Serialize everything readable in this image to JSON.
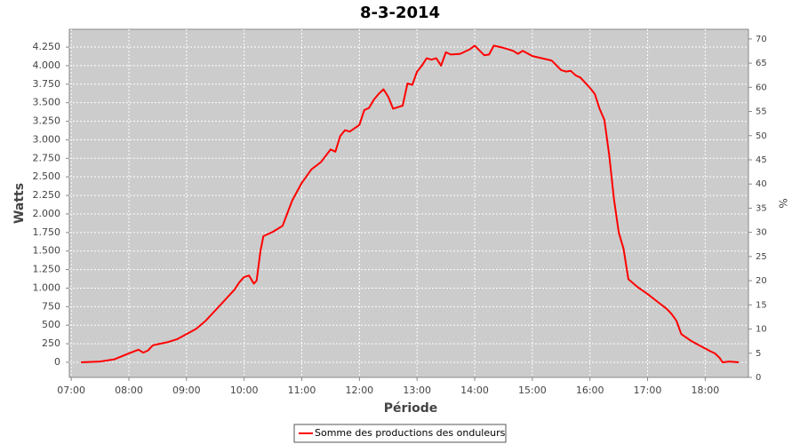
{
  "chart_data": {
    "type": "line",
    "title": "8-3-2014",
    "x_label": "Période",
    "y_label": "Watts",
    "y2_label": "%",
    "x": [
      "07:10",
      "07:30",
      "07:45",
      "08:00",
      "08:10",
      "08:15",
      "08:20",
      "08:25",
      "08:40",
      "08:50",
      "09:00",
      "09:10",
      "09:20",
      "09:30",
      "09:40",
      "09:50",
      "09:55",
      "10:00",
      "10:05",
      "10:10",
      "10:13",
      "10:17",
      "10:20",
      "10:30",
      "10:40",
      "10:50",
      "11:00",
      "11:10",
      "11:20",
      "11:30",
      "11:35",
      "11:40",
      "11:45",
      "11:50",
      "12:00",
      "12:05",
      "12:10",
      "12:15",
      "12:20",
      "12:25",
      "12:30",
      "12:35",
      "12:40",
      "12:45",
      "12:50",
      "12:55",
      "13:00",
      "13:05",
      "13:10",
      "13:15",
      "13:20",
      "13:25",
      "13:30",
      "13:35",
      "13:45",
      "13:55",
      "14:00",
      "14:10",
      "14:15",
      "14:20",
      "14:30",
      "14:40",
      "14:45",
      "14:50",
      "15:00",
      "15:10",
      "15:20",
      "15:30",
      "15:35",
      "15:40",
      "15:45",
      "15:50",
      "15:55",
      "16:00",
      "16:05",
      "16:10",
      "16:15",
      "16:20",
      "16:25",
      "16:30",
      "16:35",
      "16:40",
      "16:50",
      "17:00",
      "17:10",
      "17:20",
      "17:25",
      "17:30",
      "17:35",
      "17:45",
      "17:55",
      "18:05",
      "18:10",
      "18:15",
      "18:18",
      "18:25",
      "18:35"
    ],
    "series": [
      {
        "name": "Somme des productions des onduleurs",
        "color": "#ff0000",
        "values": [
          0,
          10,
          40,
          120,
          170,
          130,
          160,
          230,
          270,
          310,
          380,
          450,
          560,
          700,
          840,
          980,
          1080,
          1150,
          1170,
          1060,
          1100,
          1500,
          1700,
          1760,
          1840,
          2180,
          2420,
          2600,
          2700,
          2870,
          2840,
          3050,
          3130,
          3110,
          3200,
          3400,
          3430,
          3540,
          3620,
          3680,
          3580,
          3420,
          3440,
          3460,
          3760,
          3740,
          3920,
          4000,
          4100,
          4080,
          4100,
          4000,
          4180,
          4150,
          4160,
          4220,
          4270,
          4140,
          4150,
          4270,
          4240,
          4200,
          4160,
          4200,
          4130,
          4100,
          4070,
          3940,
          3920,
          3930,
          3870,
          3840,
          3770,
          3700,
          3620,
          3420,
          3270,
          2800,
          2200,
          1750,
          1530,
          1120,
          1010,
          920,
          820,
          720,
          650,
          560,
          380,
          290,
          220,
          150,
          120,
          60,
          0,
          10,
          0
        ]
      }
    ],
    "xlim": [
      "06:58",
      "18:45"
    ],
    "xticks": [
      "07:00",
      "08:00",
      "09:00",
      "10:00",
      "11:00",
      "12:00",
      "13:00",
      "14:00",
      "15:00",
      "16:00",
      "17:00",
      "18:00"
    ],
    "ylim": [
      -204,
      4490
    ],
    "yticks": [
      0,
      250,
      500,
      750,
      {
        "value": 1000,
        "label": "1.000"
      },
      {
        "value": 1250,
        "label": "1.250"
      },
      {
        "value": 1500,
        "label": "1.500"
      },
      {
        "value": 1750,
        "label": "1.750"
      },
      {
        "value": 2000,
        "label": "2.000"
      },
      {
        "value": 2250,
        "label": "2.250"
      },
      {
        "value": 2500,
        "label": "2.500"
      },
      {
        "value": 2750,
        "label": "2.750"
      },
      {
        "value": 3000,
        "label": "3.000"
      },
      {
        "value": 3250,
        "label": "3.250"
      },
      {
        "value": 3500,
        "label": "3.500"
      },
      {
        "value": 3750,
        "label": "3.750"
      },
      {
        "value": 4000,
        "label": "4.000"
      },
      {
        "value": 4250,
        "label": "4.250"
      }
    ],
    "y2lim": [
      0,
      72
    ],
    "y2ticks": [
      0,
      5,
      10,
      15,
      20,
      25,
      30,
      35,
      40,
      45,
      50,
      55,
      60,
      65,
      70
    ],
    "grid": true
  }
}
